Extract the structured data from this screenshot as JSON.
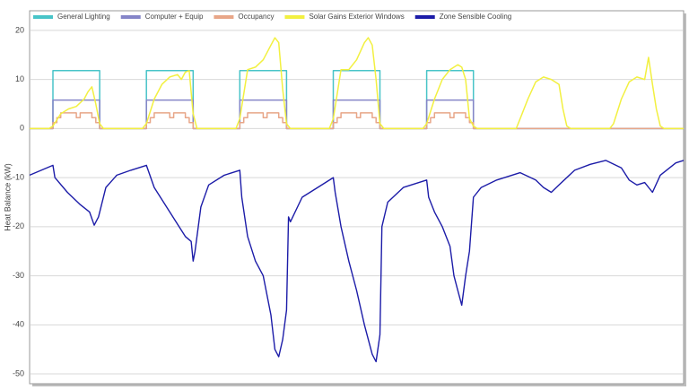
{
  "chart_data": {
    "type": "line",
    "y_label": "Heat Balance (kW)",
    "xlim": [
      0,
      168
    ],
    "ylim": [
      -52,
      24
    ],
    "yticks": [
      -50,
      -40,
      -30,
      -20,
      -10,
      0,
      10,
      20
    ],
    "grid": true,
    "legend": "top",
    "series": [
      {
        "name": "General Lighting",
        "color": "#48c4c8",
        "x": [
          0,
          6,
          6,
          18,
          18,
          30,
          30,
          42,
          42,
          54,
          54,
          66,
          66,
          78,
          78,
          90,
          90,
          102,
          102,
          114,
          114,
          168
        ],
        "values": [
          0,
          0,
          11.8,
          11.8,
          0,
          0,
          11.8,
          11.8,
          0,
          0,
          11.8,
          11.8,
          0,
          0,
          11.8,
          11.8,
          0,
          0,
          11.8,
          11.8,
          0,
          0
        ]
      },
      {
        "name": "Computer + Equip",
        "color": "#8585c8",
        "x": [
          0,
          6,
          6,
          18,
          18,
          30,
          30,
          42,
          42,
          54,
          54,
          66,
          66,
          78,
          78,
          90,
          90,
          102,
          102,
          114,
          114,
          168
        ],
        "values": [
          0,
          0,
          5.8,
          5.8,
          0,
          0,
          5.8,
          5.8,
          0,
          0,
          5.8,
          5.8,
          0,
          0,
          5.8,
          5.8,
          0,
          0,
          5.8,
          5.8,
          0,
          0
        ]
      },
      {
        "name": "Occupancy",
        "color": "#e8a688",
        "x": [
          0,
          6,
          6,
          7,
          7,
          8,
          8,
          12,
          12,
          13,
          13,
          16,
          16,
          17,
          17,
          18,
          18,
          30,
          30,
          31,
          31,
          32,
          32,
          36,
          36,
          37,
          37,
          40,
          40,
          41,
          41,
          42,
          42,
          54,
          54,
          55,
          55,
          56,
          56,
          60,
          60,
          61,
          61,
          64,
          64,
          65,
          65,
          66,
          66,
          78,
          78,
          79,
          79,
          80,
          80,
          84,
          84,
          85,
          85,
          88,
          88,
          89,
          89,
          90,
          90,
          102,
          102,
          103,
          103,
          104,
          104,
          108,
          108,
          109,
          109,
          112,
          112,
          113,
          113,
          114,
          114,
          168
        ],
        "values": [
          0,
          0,
          1.2,
          1.2,
          2.2,
          2.2,
          3.2,
          3.2,
          2.2,
          2.2,
          3.2,
          3.2,
          2.2,
          2.2,
          1.2,
          1.2,
          0,
          0,
          1.2,
          1.2,
          2.2,
          2.2,
          3.2,
          3.2,
          2.2,
          2.2,
          3.2,
          3.2,
          2.2,
          2.2,
          1.2,
          1.2,
          0,
          0,
          1.2,
          1.2,
          2.2,
          2.2,
          3.2,
          3.2,
          2.2,
          2.2,
          3.2,
          3.2,
          2.2,
          2.2,
          1.2,
          1.2,
          0,
          0,
          1.2,
          1.2,
          2.2,
          2.2,
          3.2,
          3.2,
          2.2,
          2.2,
          3.2,
          3.2,
          2.2,
          2.2,
          1.2,
          1.2,
          0,
          0,
          1.2,
          1.2,
          2.2,
          2.2,
          3.2,
          3.2,
          2.2,
          2.2,
          3.2,
          3.2,
          2.2,
          2.2,
          1.2,
          1.2,
          0,
          0
        ]
      },
      {
        "name": "Solar Gains Exterior Windows",
        "color": "#f2f040",
        "x": [
          0,
          5,
          6,
          8,
          10,
          12,
          14,
          15,
          16,
          17,
          18,
          19,
          29,
          30,
          32,
          34,
          36,
          38,
          39,
          40,
          41,
          42,
          43,
          53,
          54,
          56,
          58,
          60,
          62,
          63,
          64,
          65,
          66,
          67,
          77,
          78,
          80,
          82,
          84,
          86,
          87,
          88,
          89,
          90,
          91,
          101,
          102,
          104,
          106,
          108,
          110,
          111,
          112,
          113,
          114,
          115,
          125,
          126,
          128,
          130,
          132,
          134,
          135,
          136,
          137,
          138,
          139,
          149,
          150,
          152,
          154,
          156,
          158,
          159,
          160,
          161,
          162,
          163,
          168
        ],
        "values": [
          0,
          0,
          0.5,
          3,
          4,
          4.5,
          6,
          7.5,
          8.5,
          5,
          1,
          0,
          0,
          1,
          6,
          9,
          10.5,
          11,
          10,
          11.5,
          11.8,
          3,
          0,
          0,
          2,
          12,
          12.5,
          14,
          17,
          18.5,
          17.5,
          8,
          1,
          0,
          0,
          2,
          12,
          12,
          14,
          17.5,
          18.5,
          17,
          10,
          1,
          0,
          0,
          1,
          6,
          10,
          12,
          13,
          12.5,
          10,
          2,
          0.5,
          0,
          0,
          2,
          6,
          9.5,
          10.5,
          10,
          9.5,
          9,
          4,
          0.5,
          0,
          0,
          1,
          6,
          9.5,
          10.5,
          10,
          14.5,
          9,
          4,
          0.5,
          0,
          0
        ]
      },
      {
        "name": "Zone Sensible Cooling",
        "color": "#1c1ca8",
        "x": [
          0,
          6,
          6.5,
          9.7,
          13,
          15.4,
          16.6,
          17.7,
          19.6,
          22.4,
          26,
          30,
          32,
          36,
          40,
          41.5,
          42,
          42.5,
          44,
          46,
          50,
          54,
          54.5,
          56,
          58,
          60,
          62,
          63,
          64,
          65,
          66,
          66.5,
          67,
          70,
          74,
          78,
          78.5,
          80,
          82,
          84,
          86,
          88,
          89,
          90,
          90.5,
          92,
          96,
          102,
          102.5,
          104,
          106,
          108,
          109,
          110,
          111,
          112,
          113,
          114,
          116,
          120,
          126,
          130,
          132,
          134,
          136,
          140,
          144,
          148,
          152,
          154,
          156,
          158,
          160,
          162,
          166,
          168
        ],
        "values": [
          -9.5,
          -7.5,
          -10,
          -13,
          -15.5,
          -17,
          -19.7,
          -18,
          -12,
          -9.5,
          -8.5,
          -7.5,
          -12,
          -17,
          -22,
          -23,
          -27,
          -25,
          -16,
          -11.5,
          -9.5,
          -8.5,
          -14,
          -22,
          -27,
          -30,
          -38,
          -45,
          -46.5,
          -43,
          -37,
          -18,
          -19,
          -14,
          -12,
          -10,
          -13,
          -20,
          -27,
          -33,
          -40,
          -46,
          -47.5,
          -42,
          -20,
          -15,
          -12,
          -10.5,
          -14,
          -17,
          -20,
          -24,
          -30,
          -33,
          -36,
          -30,
          -25,
          -14,
          -12,
          -10.5,
          -9,
          -10.5,
          -12,
          -13,
          -11.5,
          -8.5,
          -7.3,
          -6.5,
          -8,
          -10.5,
          -11.5,
          -11,
          -13,
          -9.5,
          -7,
          -6.5
        ]
      }
    ]
  }
}
